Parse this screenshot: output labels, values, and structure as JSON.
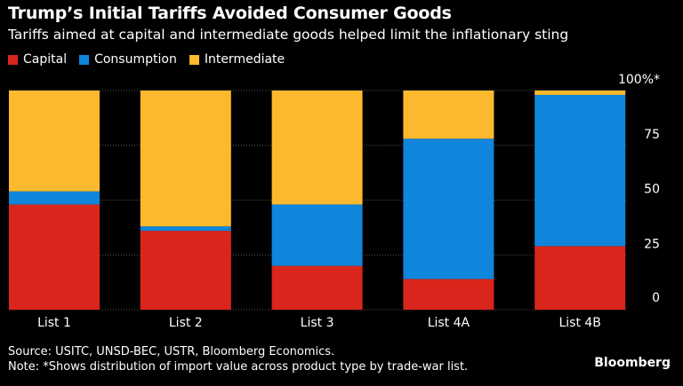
{
  "header": {
    "title": "Trump’s Initial Tariffs Avoided Consumer Goods",
    "subtitle": "Tariffs aimed at capital and intermediate goods helped limit the inflationary sting"
  },
  "footer": {
    "source": "Source: USITC, UNSD-BEC, USTR, Bloomberg Economics.",
    "note": "Note: *Shows distribution of import value across product type by trade-war list.",
    "brand": "Bloomberg"
  },
  "colors": {
    "capital": "#d9251c",
    "consumption": "#0f86dc",
    "intermediate": "#fdb92e",
    "grid": "#5a5a5a"
  },
  "chart_data": {
    "type": "bar",
    "stacked": true,
    "categories": [
      "List 1",
      "List 2",
      "List 3",
      "List 4A",
      "List 4B"
    ],
    "series": [
      {
        "name": "Capital",
        "color": "#d9251c",
        "values": [
          48,
          36,
          20,
          14,
          29
        ]
      },
      {
        "name": "Consumption",
        "color": "#0f86dc",
        "values": [
          6,
          2,
          28,
          64,
          69
        ]
      },
      {
        "name": "Intermediate",
        "color": "#fdb92e",
        "values": [
          46,
          62,
          52,
          22,
          2
        ]
      }
    ],
    "yticks": [
      "0",
      "25",
      "50",
      "75",
      "100%*"
    ],
    "ylim": [
      0,
      100
    ],
    "legend": "top-left",
    "grid": true
  }
}
